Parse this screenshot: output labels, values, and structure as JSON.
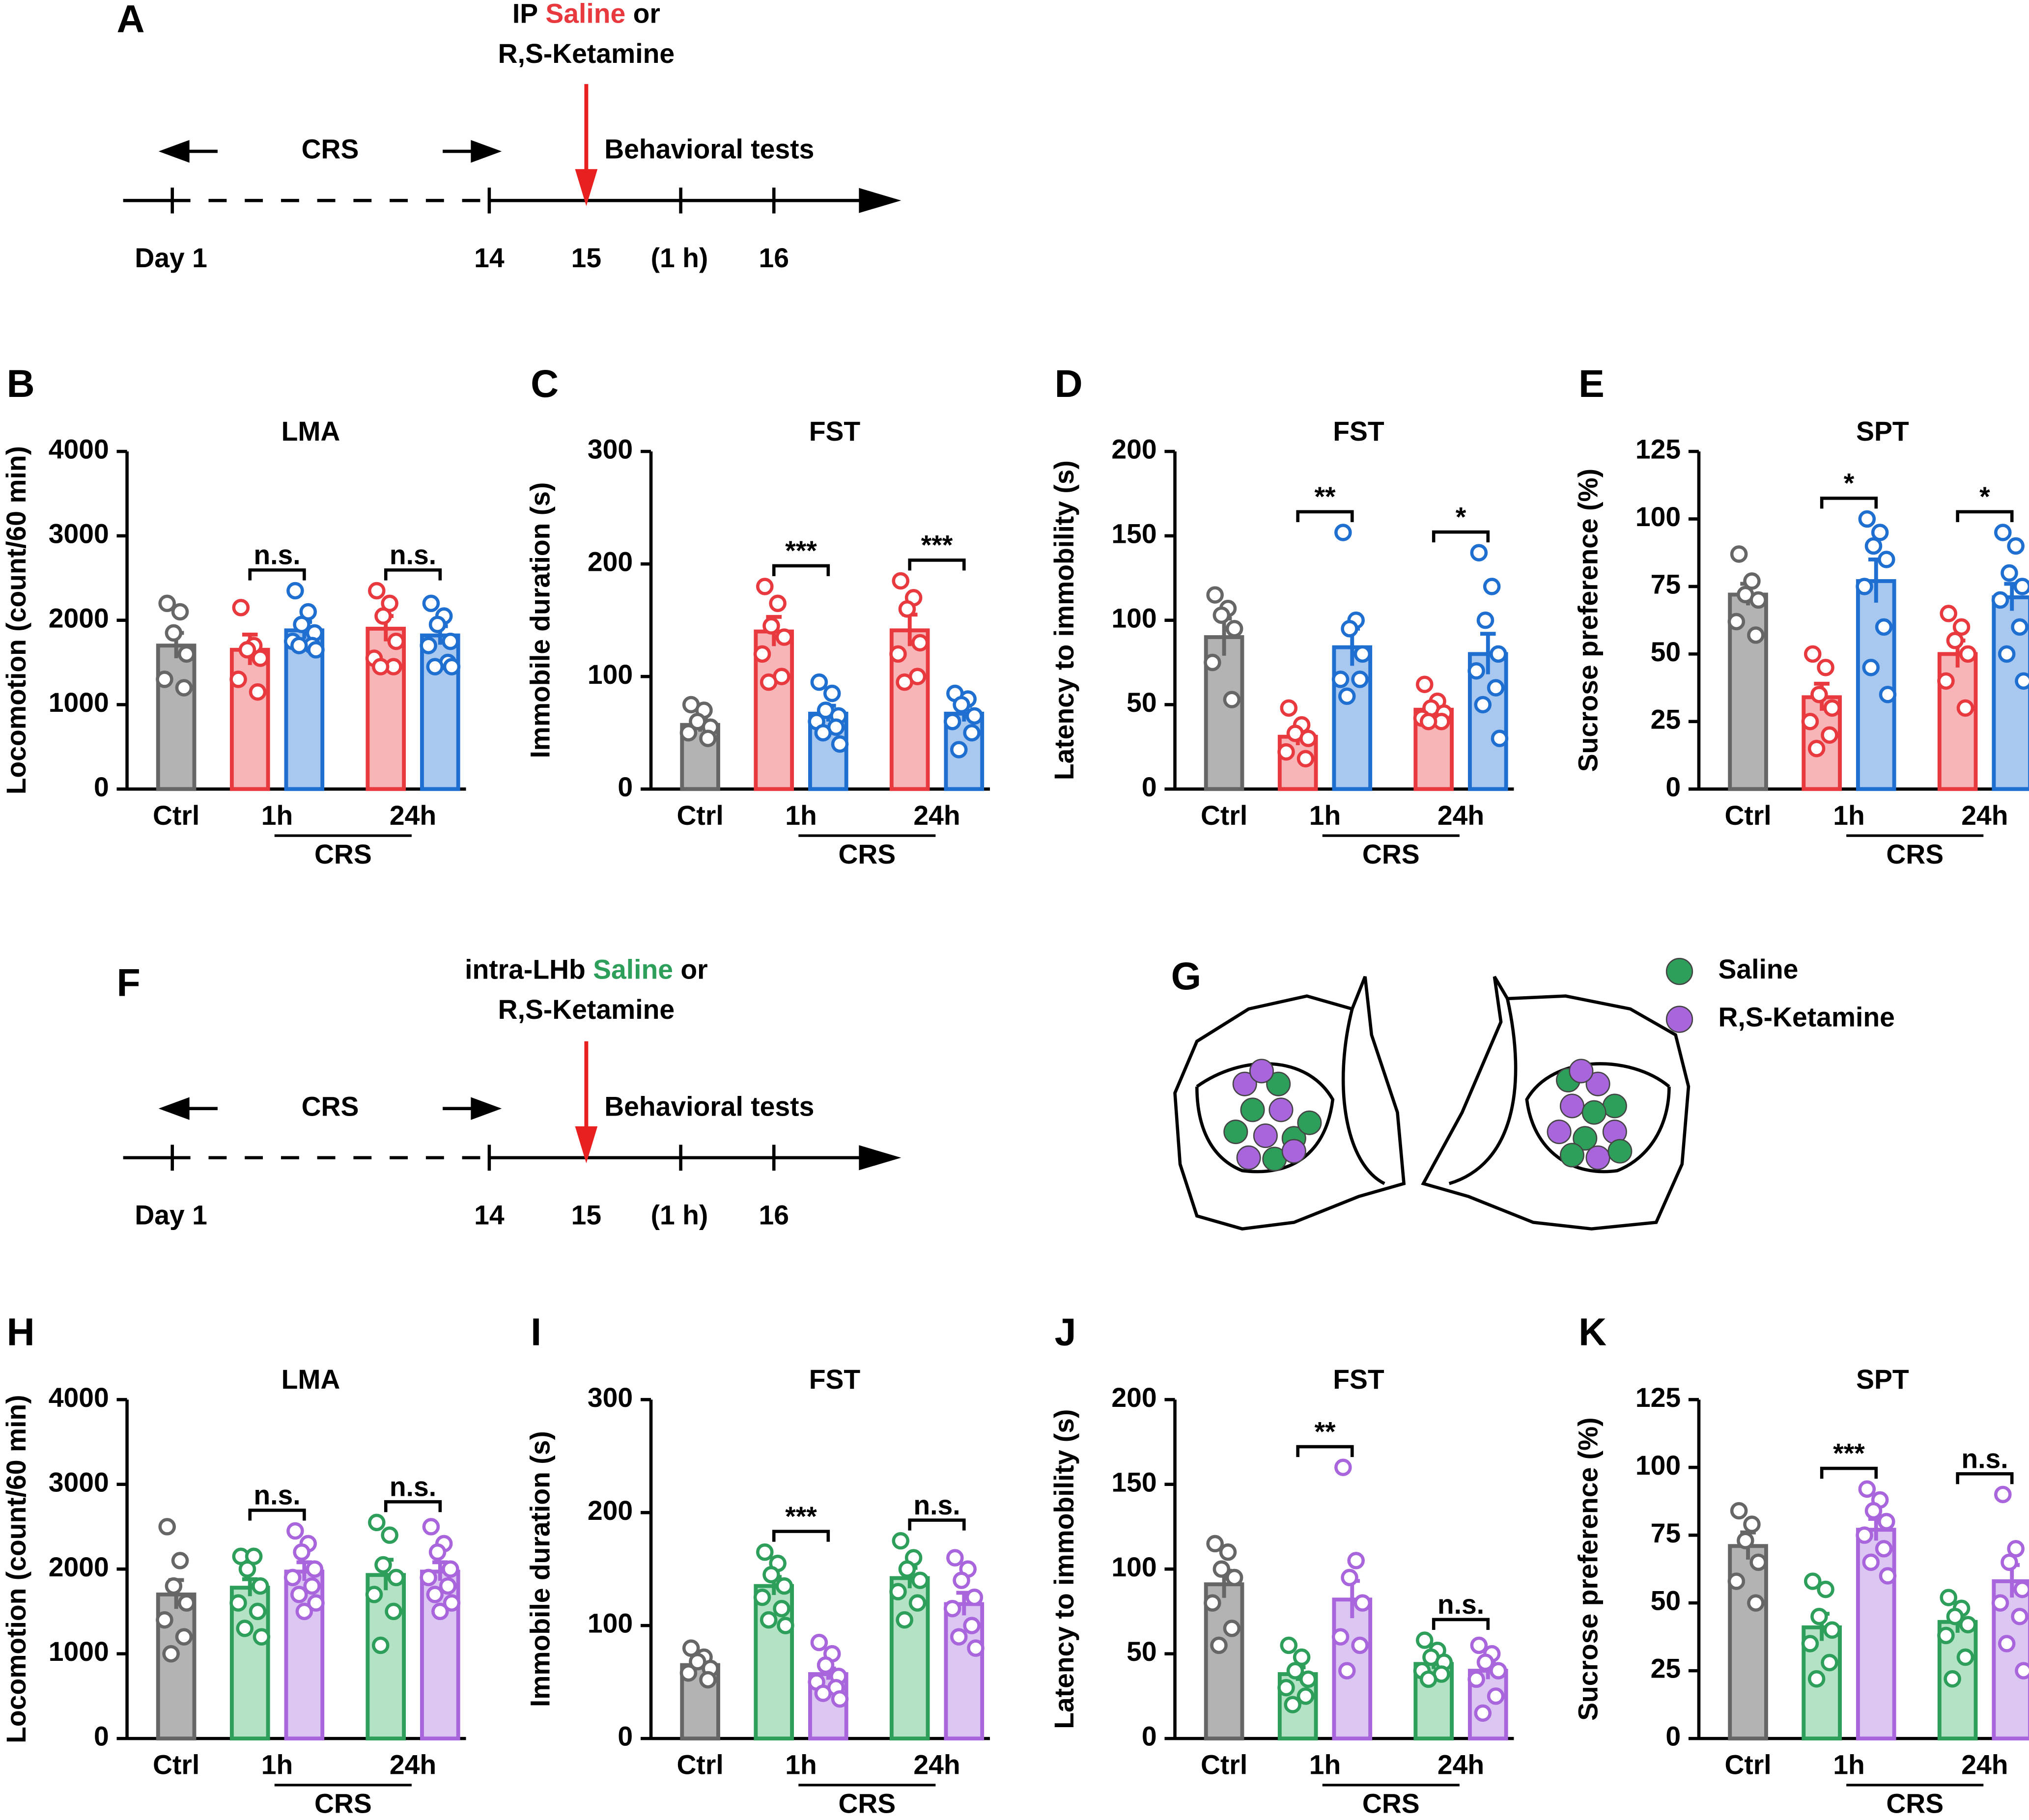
{
  "timeline_a": {
    "panel": "A",
    "treatment": [
      "IP",
      "Saline",
      "or"
    ],
    "drug": "R,S-Ketamine",
    "phase": "CRS",
    "tests": "Behavioral tests",
    "days": [
      "Day 1",
      "14",
      "15",
      "(1 h)",
      "16"
    ]
  },
  "timeline_f": {
    "panel": "F",
    "treatment": [
      "intra-LHb",
      "Saline",
      "or"
    ],
    "drug": "R,S-Ketamine",
    "phase": "CRS",
    "tests": "Behavioral tests",
    "days": [
      "Day 1",
      "14",
      "15",
      "(1 h)",
      "16"
    ]
  },
  "placement_g": {
    "panel": "G",
    "legend": [
      "Saline",
      "R,S-Ketamine"
    ]
  },
  "chart_data": [
    {
      "type": "bar",
      "panel": "B",
      "title": "LMA",
      "ylabel": "Locomotion (count/60 min)",
      "ylim": [
        0,
        4000
      ],
      "yticks": [
        0,
        1000,
        2000,
        3000,
        4000
      ],
      "categories": [
        "Ctrl",
        "1h",
        "24h"
      ],
      "group_label": "CRS",
      "significance": [
        null,
        "n.s.",
        "n.s."
      ],
      "series": [
        {
          "color": "#666666",
          "fill": "#b3b3b3",
          "values": [
            1700,
            null,
            null
          ],
          "errors": [
            150,
            null,
            null
          ],
          "points": [
            [
              2200,
              2100,
              1850,
              1600,
              1300,
              1200
            ],
            null,
            null
          ]
        },
        {
          "color": "#e8393f",
          "fill": "#f8b5b8",
          "values": [
            null,
            1650,
            1900
          ],
          "errors": [
            null,
            180,
            150
          ],
          "points": [
            null,
            [
              2150,
              1700,
              1650,
              1550,
              1300,
              1150
            ],
            [
              2350,
              2200,
              2050,
              1750,
              1550,
              1450,
              1450
            ]
          ]
        },
        {
          "color": "#1f6fd1",
          "fill": "#a9c8f0",
          "values": [
            null,
            1880,
            1820
          ],
          "errors": [
            null,
            100,
            110
          ],
          "points": [
            null,
            [
              2350,
              2100,
              1950,
              1850,
              1750,
              1700,
              1700,
              1650
            ],
            [
              2200,
              2050,
              1950,
              1750,
              1700,
              1500,
              1450,
              1450
            ]
          ]
        }
      ]
    },
    {
      "type": "bar",
      "panel": "C",
      "title": "FST",
      "ylabel": "Immobile duration (s)",
      "ylim": [
        0,
        300
      ],
      "yticks": [
        0,
        100,
        200,
        300
      ],
      "categories": [
        "Ctrl",
        "1h",
        "24h"
      ],
      "group_label": "CRS",
      "significance": [
        null,
        "***",
        "***"
      ],
      "series": [
        {
          "color": "#666666",
          "fill": "#b3b3b3",
          "values": [
            57,
            null,
            null
          ],
          "errors": [
            6,
            null,
            null
          ],
          "points": [
            [
              75,
              70,
              60,
              55,
              50,
              45
            ],
            null,
            null
          ]
        },
        {
          "color": "#e8393f",
          "fill": "#f8b5b8",
          "values": [
            null,
            140,
            141
          ],
          "errors": [
            null,
            13,
            14
          ],
          "points": [
            null,
            [
              180,
              165,
              145,
              135,
              120,
              100,
              95
            ],
            [
              185,
              170,
              160,
              130,
              120,
              100,
              95
            ]
          ]
        },
        {
          "color": "#1f6fd1",
          "fill": "#a9c8f0",
          "values": [
            null,
            67,
            67
          ],
          "errors": [
            null,
            7,
            7
          ],
          "points": [
            null,
            [
              95,
              85,
              70,
              65,
              60,
              55,
              50,
              40
            ],
            [
              85,
              80,
              75,
              65,
              60,
              50,
              35
            ]
          ]
        }
      ]
    },
    {
      "type": "bar",
      "panel": "D",
      "title": "FST",
      "ylabel": "Latency to immobility (s)",
      "ylim": [
        0,
        200
      ],
      "yticks": [
        0,
        50,
        100,
        150,
        200
      ],
      "categories": [
        "Ctrl",
        "1h",
        "24h"
      ],
      "group_label": "CRS",
      "significance": [
        null,
        "**",
        "*"
      ],
      "series": [
        {
          "color": "#666666",
          "fill": "#b3b3b3",
          "values": [
            90,
            null,
            null
          ],
          "errors": [
            11,
            null,
            null
          ],
          "points": [
            [
              115,
              107,
              103,
              95,
              75,
              53
            ],
            null,
            null
          ]
        },
        {
          "color": "#e8393f",
          "fill": "#f8b5b8",
          "values": [
            null,
            31,
            47
          ],
          "errors": [
            null,
            5,
            4
          ],
          "points": [
            null,
            [
              48,
              38,
              33,
              30,
              22,
              18
            ],
            [
              62,
              52,
              48,
              45,
              42,
              40,
              40
            ]
          ]
        },
        {
          "color": "#1f6fd1",
          "fill": "#a9c8f0",
          "values": [
            null,
            84,
            80
          ],
          "errors": [
            null,
            11,
            12
          ],
          "points": [
            null,
            [
              152,
              100,
              95,
              80,
              65,
              65,
              55
            ],
            [
              140,
              120,
              100,
              80,
              70,
              60,
              50,
              30
            ]
          ]
        }
      ]
    },
    {
      "type": "bar",
      "panel": "E",
      "title": "SPT",
      "ylabel": "Sucrose preference (%)",
      "ylim": [
        0,
        125
      ],
      "yticks": [
        0,
        25,
        50,
        75,
        100,
        125
      ],
      "categories": [
        "Ctrl",
        "1h",
        "24h"
      ],
      "group_label": "CRS",
      "significance": [
        null,
        "*",
        "*"
      ],
      "series": [
        {
          "color": "#666666",
          "fill": "#b3b3b3",
          "values": [
            72,
            null,
            null
          ],
          "errors": [
            4,
            null,
            null
          ],
          "points": [
            [
              87,
              77,
              72,
              70,
              62,
              57
            ],
            null,
            null
          ]
        },
        {
          "color": "#e8393f",
          "fill": "#f8b5b8",
          "values": [
            null,
            34,
            50
          ],
          "errors": [
            null,
            5,
            5
          ],
          "points": [
            null,
            [
              50,
              45,
              35,
              30,
              25,
              20,
              15
            ],
            [
              65,
              60,
              55,
              50,
              40,
              30
            ]
          ]
        },
        {
          "color": "#1f6fd1",
          "fill": "#a9c8f0",
          "values": [
            null,
            77,
            71
          ],
          "errors": [
            null,
            8,
            5
          ],
          "points": [
            null,
            [
              100,
              95,
              90,
              85,
              75,
              60,
              45,
              35
            ],
            [
              95,
              90,
              80,
              75,
              70,
              60,
              50,
              40
            ]
          ]
        }
      ]
    },
    {
      "type": "bar",
      "panel": "H",
      "title": "LMA",
      "ylabel": "Locomotion (count/60 min)",
      "ylim": [
        0,
        4000
      ],
      "yticks": [
        0,
        1000,
        2000,
        3000,
        4000
      ],
      "categories": [
        "Ctrl",
        "1h",
        "24h"
      ],
      "group_label": "CRS",
      "significance": [
        null,
        "n.s.",
        "n.s."
      ],
      "series": [
        {
          "color": "#666666",
          "fill": "#b3b3b3",
          "values": [
            1700,
            null,
            null
          ],
          "errors": [
            170,
            null,
            null
          ],
          "points": [
            [
              2500,
              2100,
              1800,
              1600,
              1400,
              1200,
              1000
            ],
            null,
            null
          ]
        },
        {
          "color": "#2e9e5b",
          "fill": "#b4e2c4",
          "values": [
            null,
            1780,
            1930
          ],
          "errors": [
            null,
            100,
            180
          ],
          "points": [
            null,
            [
              2150,
              2150,
              2000,
              1800,
              1600,
              1500,
              1300,
              1200
            ],
            [
              2550,
              2400,
              2050,
              1900,
              1700,
              1500,
              1100
            ]
          ]
        },
        {
          "color": "#a865dc",
          "fill": "#dcc6f2",
          "values": [
            null,
            1970,
            1970
          ],
          "errors": [
            null,
            110,
            110
          ],
          "points": [
            null,
            [
              2450,
              2300,
              2200,
              2000,
              1900,
              1800,
              1700,
              1600,
              1500
            ],
            [
              2500,
              2300,
              2200,
              2000,
              1900,
              1800,
              1700,
              1600,
              1500
            ]
          ]
        }
      ]
    },
    {
      "type": "bar",
      "panel": "I",
      "title": "FST",
      "ylabel": "Immobile duration (s)",
      "ylim": [
        0,
        300
      ],
      "yticks": [
        0,
        100,
        200,
        300
      ],
      "categories": [
        "Ctrl",
        "1h",
        "24h"
      ],
      "group_label": "CRS",
      "significance": [
        null,
        "***",
        "n.s."
      ],
      "series": [
        {
          "color": "#666666",
          "fill": "#b3b3b3",
          "values": [
            65,
            null,
            null
          ],
          "errors": [
            4,
            null,
            null
          ],
          "points": [
            [
              80,
              72,
              68,
              62,
              58,
              52
            ],
            null,
            null
          ]
        },
        {
          "color": "#2e9e5b",
          "fill": "#b4e2c4",
          "values": [
            null,
            135,
            142
          ],
          "errors": [
            null,
            8,
            9
          ],
          "points": [
            null,
            [
              165,
              155,
              145,
              135,
              125,
              115,
              105,
              100
            ],
            [
              175,
              160,
              150,
              140,
              130,
              120,
              105
            ]
          ]
        },
        {
          "color": "#a865dc",
          "fill": "#dcc6f2",
          "values": [
            null,
            57,
            119
          ],
          "errors": [
            null,
            5,
            10
          ],
          "points": [
            null,
            [
              85,
              75,
              65,
              55,
              50,
              45,
              40,
              35
            ],
            [
              160,
              150,
              140,
              125,
              115,
              100,
              90,
              80
            ]
          ]
        }
      ]
    },
    {
      "type": "bar",
      "panel": "J",
      "title": "FST",
      "ylabel": "Latency to immobility (s)",
      "ylim": [
        0,
        200
      ],
      "yticks": [
        0,
        50,
        100,
        150,
        200
      ],
      "categories": [
        "Ctrl",
        "1h",
        "24h"
      ],
      "group_label": "CRS",
      "significance": [
        null,
        "**",
        "n.s."
      ],
      "series": [
        {
          "color": "#666666",
          "fill": "#b3b3b3",
          "values": [
            91,
            null,
            null
          ],
          "errors": [
            8,
            null,
            null
          ],
          "points": [
            [
              115,
              110,
              100,
              95,
              80,
              65,
              55
            ],
            null,
            null
          ]
        },
        {
          "color": "#2e9e5b",
          "fill": "#b4e2c4",
          "values": [
            null,
            38,
            44
          ],
          "errors": [
            null,
            4,
            3
          ],
          "points": [
            null,
            [
              55,
              48,
              40,
              35,
              30,
              25,
              20
            ],
            [
              58,
              52,
              48,
              45,
              40,
              38,
              35
            ]
          ]
        },
        {
          "color": "#a865dc",
          "fill": "#dcc6f2",
          "values": [
            null,
            82,
            40
          ],
          "errors": [
            null,
            11,
            5
          ],
          "points": [
            null,
            [
              160,
              105,
              95,
              80,
              60,
              55,
              40
            ],
            [
              55,
              50,
              45,
              40,
              35,
              25,
              15
            ]
          ]
        }
      ]
    },
    {
      "type": "bar",
      "panel": "K",
      "title": "SPT",
      "ylabel": "Sucrose preference (%)",
      "ylim": [
        0,
        125
      ],
      "yticks": [
        0,
        25,
        50,
        75,
        100,
        125
      ],
      "categories": [
        "Ctrl",
        "1h",
        "24h"
      ],
      "group_label": "CRS",
      "significance": [
        null,
        "***",
        "n.s."
      ],
      "series": [
        {
          "color": "#666666",
          "fill": "#b3b3b3",
          "values": [
            71,
            null,
            null
          ],
          "errors": [
            5,
            null,
            null
          ],
          "points": [
            [
              84,
              79,
              73,
              65,
              58,
              50
            ],
            null,
            null
          ]
        },
        {
          "color": "#2e9e5b",
          "fill": "#b4e2c4",
          "values": [
            null,
            41,
            43
          ],
          "errors": [
            null,
            5,
            4
          ],
          "points": [
            null,
            [
              58,
              55,
              45,
              40,
              35,
              28,
              22
            ],
            [
              52,
              48,
              45,
              42,
              38,
              30,
              22
            ]
          ]
        },
        {
          "color": "#a865dc",
          "fill": "#dcc6f2",
          "values": [
            null,
            77,
            58
          ],
          "errors": [
            null,
            4,
            6
          ],
          "points": [
            null,
            [
              92,
              88,
              84,
              80,
              75,
              70,
              65,
              60
            ],
            [
              90,
              70,
              65,
              55,
              50,
              45,
              35,
              25
            ]
          ]
        }
      ]
    }
  ]
}
